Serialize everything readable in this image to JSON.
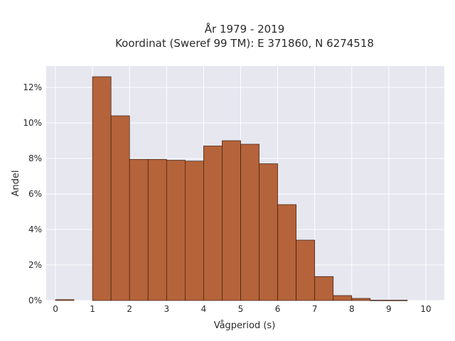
{
  "chart_data": {
    "type": "bar",
    "title_lines": [
      "År 1979 - 2019",
      "Koordinat (Sweref 99 TM): E 371860, N 6274518"
    ],
    "xlabel": "Vågperiod (s)",
    "ylabel": "Andel",
    "xlim": [
      -0.25,
      10.5
    ],
    "ylim": [
      0,
      13.2
    ],
    "x_ticks": [
      0,
      1,
      2,
      3,
      4,
      5,
      6,
      7,
      8,
      9,
      10
    ],
    "x_tick_labels": [
      "0",
      "1",
      "2",
      "3",
      "4",
      "5",
      "6",
      "7",
      "8",
      "9",
      "10"
    ],
    "y_ticks": [
      0,
      2,
      4,
      6,
      8,
      10,
      12
    ],
    "y_tick_labels": [
      "0%",
      "2%",
      "4%",
      "6%",
      "8%",
      "10%",
      "12%"
    ],
    "bin_width": 0.5,
    "bin_starts": [
      0,
      0.5,
      1,
      1.5,
      2,
      2.5,
      3,
      3.5,
      4,
      4.5,
      5,
      5.5,
      6,
      6.5,
      7,
      7.5,
      8,
      8.5,
      9,
      9.5
    ],
    "values": [
      0.05,
      0,
      12.6,
      10.4,
      7.95,
      7.95,
      7.9,
      7.85,
      8.7,
      9.0,
      8.8,
      7.7,
      5.4,
      3.4,
      1.35,
      0.28,
      0.12,
      0.02,
      0.02,
      0
    ],
    "bar_color": "#b5633a",
    "bar_edge_color": "#3a1e10",
    "plot_background": "#e6e7ef",
    "grid": true,
    "grid_color": "#ffffff"
  }
}
